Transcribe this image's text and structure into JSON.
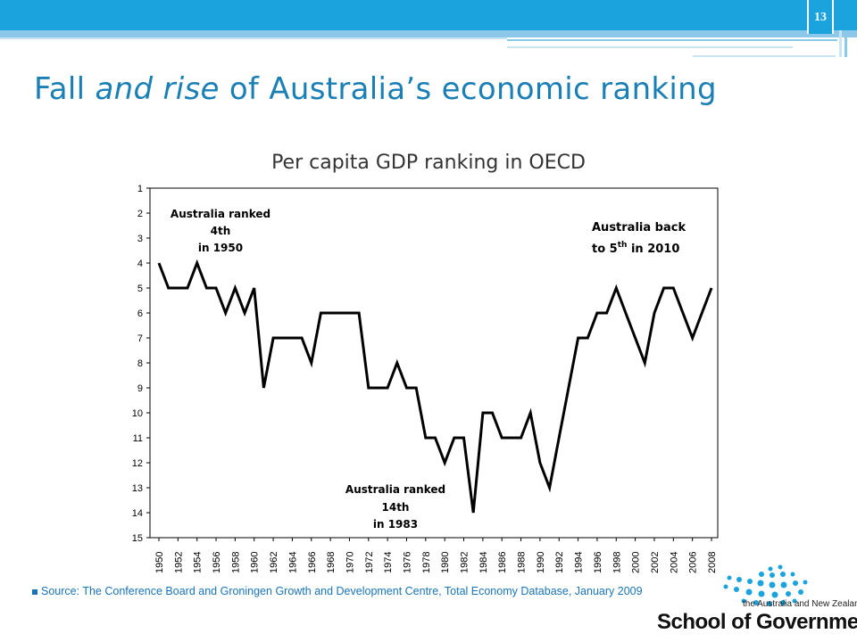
{
  "slide": {
    "page_number": "13",
    "title_part1": "Fall ",
    "title_em": "and rise",
    "title_part2": " of Australia’s economic ranking",
    "source": "Source: The Conference Board and Groningen Growth and Development Centre, Total Economy Database, January 2009",
    "logo_subtitle": "the Australia and New Zealand",
    "logo_name": "School of Government",
    "colors": {
      "accent": "#1ba3de",
      "title": "#1a7fb5",
      "source": "#1a74b8",
      "line": "#000000"
    }
  },
  "chart_data": {
    "type": "line",
    "title": "Per capita GDP ranking in OECD",
    "xlabel": "",
    "ylabel": "",
    "ylim": [
      1,
      15
    ],
    "y_inverted": true,
    "y_ticks": [
      "1",
      "2",
      "3",
      "4",
      "5",
      "6",
      "7",
      "8",
      "9",
      "10",
      "11",
      "12",
      "13",
      "14",
      "15"
    ],
    "x_ticks": [
      "1950",
      "1952",
      "1954",
      "1956",
      "1958",
      "1960",
      "1962",
      "1964",
      "1966",
      "1968",
      "1970",
      "1972",
      "1974",
      "1976",
      "1978",
      "1980",
      "1982",
      "1984",
      "1986",
      "1988",
      "1990",
      "1992",
      "1994",
      "1996",
      "1998",
      "2000",
      "2002",
      "2004",
      "2006",
      "2008"
    ],
    "grid": false,
    "series": [
      {
        "x": [
          1950,
          1951,
          1952,
          1953,
          1954,
          1955,
          1956,
          1957,
          1958,
          1959,
          1960,
          1961,
          1962,
          1963,
          1964,
          1965,
          1966,
          1967,
          1968,
          1969,
          1970,
          1971,
          1972,
          1973,
          1974,
          1975,
          1976,
          1977,
          1978,
          1979,
          1980,
          1981,
          1982,
          1983,
          1984,
          1985,
          1986,
          1987,
          1988,
          1989,
          1990,
          1991,
          1992,
          1993,
          1994,
          1995,
          1996,
          1997,
          1998,
          1999,
          2000,
          2001,
          2002,
          2003,
          2004,
          2005,
          2006,
          2007,
          2008
        ],
        "values": [
          4,
          5,
          5,
          5,
          4,
          5,
          5,
          6,
          5,
          6,
          5,
          9,
          7,
          7,
          7,
          7,
          8,
          6,
          6,
          6,
          6,
          6,
          9,
          9,
          9,
          8,
          9,
          9,
          11,
          11,
          12,
          11,
          11,
          14,
          10,
          10,
          11,
          11,
          11,
          10,
          12,
          13,
          11,
          9,
          7,
          7,
          6,
          6,
          5,
          6,
          7,
          8,
          6,
          5,
          5,
          6,
          7,
          6,
          5
        ]
      }
    ],
    "annotations": [
      {
        "lines": [
          "Australia ranked",
          "4th",
          "in 1950"
        ]
      },
      {
        "lines": [
          "Australia back",
          "to 5",
          "th",
          " in 2010"
        ]
      },
      {
        "lines": [
          "Australia ranked",
          "14th",
          "in 1983"
        ]
      }
    ]
  }
}
